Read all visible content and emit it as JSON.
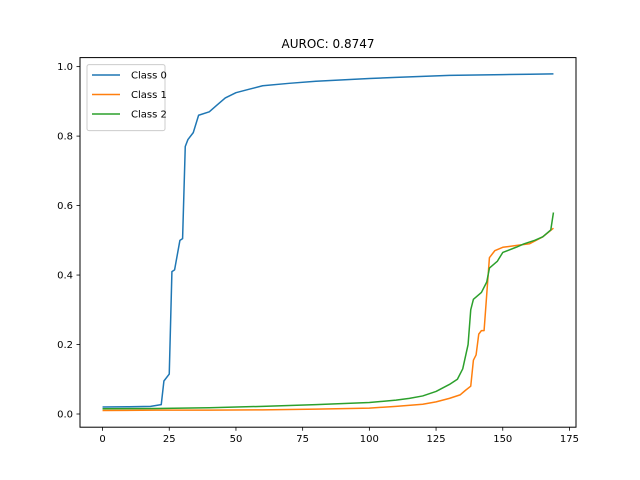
{
  "chart_data": {
    "type": "line",
    "title": "AUROC: 0.8747",
    "xlabel": "",
    "ylabel": "",
    "xlim": [
      -8.45,
      177.45
    ],
    "ylim": [
      -0.038,
      1.026
    ],
    "xticks": [
      0,
      25,
      50,
      75,
      100,
      125,
      150,
      175
    ],
    "yticks": [
      0.0,
      0.2,
      0.4,
      0.6,
      0.8,
      1.0
    ],
    "xtick_labels": [
      "0",
      "25",
      "50",
      "75",
      "100",
      "125",
      "150",
      "175"
    ],
    "ytick_labels": [
      "0.0",
      "0.2",
      "0.4",
      "0.6",
      "0.8",
      "1.0"
    ],
    "grid": false,
    "legend_position": "top-left",
    "series": [
      {
        "name": "Class 0",
        "color": "#1f77b4",
        "points": [
          [
            0,
            0.02
          ],
          [
            10,
            0.021
          ],
          [
            18,
            0.022
          ],
          [
            22,
            0.027
          ],
          [
            23,
            0.095
          ],
          [
            25,
            0.115
          ],
          [
            26,
            0.41
          ],
          [
            27,
            0.415
          ],
          [
            29,
            0.5
          ],
          [
            30,
            0.505
          ],
          [
            31,
            0.77
          ],
          [
            32,
            0.79
          ],
          [
            34,
            0.81
          ],
          [
            36,
            0.86
          ],
          [
            40,
            0.87
          ],
          [
            43,
            0.89
          ],
          [
            46,
            0.91
          ],
          [
            50,
            0.925
          ],
          [
            55,
            0.935
          ],
          [
            60,
            0.945
          ],
          [
            70,
            0.952
          ],
          [
            80,
            0.958
          ],
          [
            90,
            0.962
          ],
          [
            100,
            0.966
          ],
          [
            110,
            0.969
          ],
          [
            120,
            0.972
          ],
          [
            130,
            0.975
          ],
          [
            140,
            0.976
          ],
          [
            150,
            0.977
          ],
          [
            160,
            0.978
          ],
          [
            169,
            0.979
          ]
        ]
      },
      {
        "name": "Class 1",
        "color": "#ff7f0e",
        "points": [
          [
            0,
            0.01
          ],
          [
            20,
            0.011
          ],
          [
            40,
            0.011
          ],
          [
            60,
            0.012
          ],
          [
            80,
            0.014
          ],
          [
            100,
            0.017
          ],
          [
            110,
            0.022
          ],
          [
            120,
            0.028
          ],
          [
            125,
            0.035
          ],
          [
            130,
            0.045
          ],
          [
            134,
            0.055
          ],
          [
            136,
            0.068
          ],
          [
            138,
            0.08
          ],
          [
            139,
            0.155
          ],
          [
            140,
            0.17
          ],
          [
            141,
            0.23
          ],
          [
            142,
            0.24
          ],
          [
            143,
            0.24
          ],
          [
            145,
            0.45
          ],
          [
            147,
            0.47
          ],
          [
            150,
            0.48
          ],
          [
            155,
            0.485
          ],
          [
            160,
            0.49
          ],
          [
            165,
            0.51
          ],
          [
            169,
            0.535
          ]
        ]
      },
      {
        "name": "Class 2",
        "color": "#2ca02c",
        "points": [
          [
            0,
            0.015
          ],
          [
            20,
            0.016
          ],
          [
            40,
            0.018
          ],
          [
            60,
            0.022
          ],
          [
            80,
            0.027
          ],
          [
            100,
            0.033
          ],
          [
            110,
            0.04
          ],
          [
            115,
            0.045
          ],
          [
            120,
            0.052
          ],
          [
            125,
            0.065
          ],
          [
            130,
            0.085
          ],
          [
            133,
            0.1
          ],
          [
            135,
            0.13
          ],
          [
            137,
            0.2
          ],
          [
            138,
            0.3
          ],
          [
            139,
            0.33
          ],
          [
            142,
            0.35
          ],
          [
            144,
            0.38
          ],
          [
            145,
            0.42
          ],
          [
            148,
            0.44
          ],
          [
            150,
            0.465
          ],
          [
            155,
            0.48
          ],
          [
            158,
            0.49
          ],
          [
            162,
            0.5
          ],
          [
            165,
            0.51
          ],
          [
            168,
            0.53
          ],
          [
            169,
            0.58
          ]
        ]
      }
    ]
  }
}
